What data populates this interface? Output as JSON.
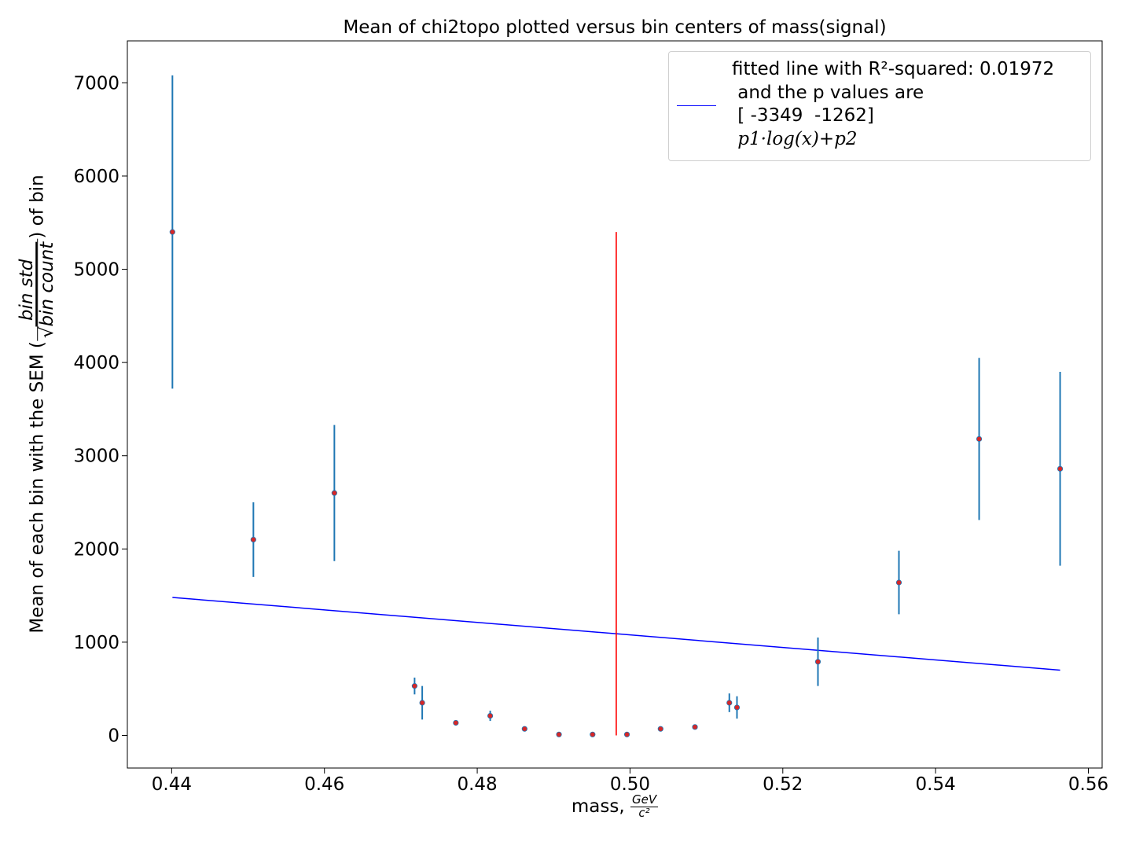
{
  "chart_data": {
    "type": "scatter",
    "title": "Mean of chi2topo plotted versus bin centers of mass(signal)",
    "xlabel": "mass,",
    "xlabel_unit": {
      "num": "GeV",
      "den": "c²"
    },
    "ylabel": "Mean of each bin with the SEM (",
    "ylabel_frac": {
      "num": "bin std",
      "den": "bin count"
    },
    "ylabel_end": ") of bin",
    "xlim": [
      0.4342,
      0.5618
    ],
    "ylim": [
      -350,
      7450
    ],
    "xticks": [
      0.44,
      0.46,
      0.48,
      0.5,
      0.52,
      0.54,
      0.56
    ],
    "xtick_labels": [
      "0.44",
      "0.46",
      "0.48",
      "0.50",
      "0.52",
      "0.54",
      "0.56"
    ],
    "yticks": [
      0,
      1000,
      2000,
      3000,
      4000,
      5000,
      6000,
      7000
    ],
    "ytick_labels": [
      "0",
      "1000",
      "2000",
      "3000",
      "4000",
      "5000",
      "6000",
      "7000"
    ],
    "grid": false,
    "legend_position": "top-right",
    "points": {
      "x": [
        0.4401,
        0.4507,
        0.4613,
        0.4718,
        0.4728,
        0.4772,
        0.4817,
        0.4862,
        0.4907,
        0.4951,
        0.4996,
        0.504,
        0.5085,
        0.513,
        0.514,
        0.5246,
        0.5352,
        0.5457,
        0.5563
      ],
      "y": [
        5400,
        2100,
        2600,
        530,
        350,
        135,
        210,
        70,
        10,
        10,
        10,
        70,
        90,
        350,
        300,
        790,
        1640,
        3180,
        2860
      ],
      "yerr": [
        1680,
        400,
        730,
        90,
        180,
        15,
        55,
        15,
        5,
        5,
        5,
        15,
        25,
        100,
        120,
        260,
        340,
        870,
        1040
      ],
      "point_color": "#d62728",
      "errorbar_color": "#1f77b4"
    },
    "fit_line": {
      "x": [
        0.4401,
        0.5563
      ],
      "y": [
        1480,
        700
      ],
      "color": "#0000ff",
      "legend_lines": [
        "fitted line with R²-squared: 0.01972",
        " and the p values are",
        " [ -3349  -1262]",
        " p1·log(x)+p2"
      ]
    },
    "vertical_line": {
      "x": 0.4982,
      "y": [
        0,
        5400
      ],
      "color": "#ff0000"
    }
  }
}
